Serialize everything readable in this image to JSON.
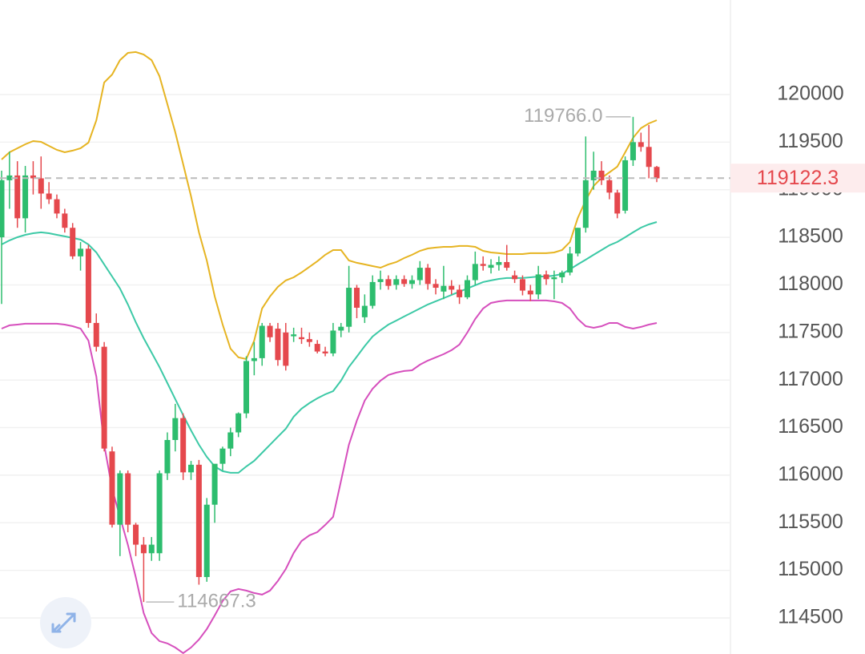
{
  "chart_data": {
    "type": "candlestick",
    "ylim": [
      114121,
      120994
    ],
    "yticks": [
      114500,
      115000,
      115500,
      116000,
      116500,
      117000,
      117500,
      118000,
      118500,
      119000,
      119500,
      120000
    ],
    "grid": true,
    "up_color": "#2dbd6e",
    "down_color": "#e5484d",
    "candles": [
      [
        118500,
        119200,
        117800,
        119100
      ],
      [
        119100,
        119400,
        118800,
        119150
      ],
      [
        119150,
        119300,
        118600,
        118700
      ],
      [
        118700,
        119250,
        118550,
        119150
      ],
      [
        119150,
        119300,
        118950,
        119120
      ],
      [
        119120,
        119350,
        118800,
        118960
      ],
      [
        118960,
        119080,
        118850,
        118900
      ],
      [
        118900,
        118950,
        118700,
        118750
      ],
      [
        118750,
        118800,
        118550,
        118600
      ],
      [
        118600,
        118650,
        118270,
        118300
      ],
      [
        118300,
        118450,
        118150,
        118380
      ],
      [
        118380,
        118420,
        117550,
        117600
      ],
      [
        117600,
        117700,
        117300,
        117350
      ],
      [
        117350,
        117400,
        116250,
        116280
      ],
      [
        116250,
        116300,
        115450,
        115480
      ],
      [
        115480,
        116050,
        115150,
        116020
      ],
      [
        116020,
        116050,
        115400,
        115480
      ],
      [
        115480,
        115500,
        115150,
        115270
      ],
      [
        115270,
        115350,
        114667.3,
        115180
      ],
      [
        115180,
        115350,
        115100,
        115270
      ],
      [
        115180,
        116050,
        115100,
        116020
      ],
      [
        116020,
        116450,
        115950,
        116370
      ],
      [
        116370,
        116750,
        116250,
        116600
      ],
      [
        116600,
        116650,
        115950,
        116030
      ],
      [
        116030,
        116150,
        115950,
        116110
      ],
      [
        116110,
        116160,
        114850,
        114930
      ],
      [
        114930,
        115760,
        114880,
        115690
      ],
      [
        115690,
        116100,
        115500,
        116120
      ],
      [
        116120,
        116300,
        116050,
        116280
      ],
      [
        116280,
        116500,
        116200,
        116450
      ],
      [
        116450,
        116660,
        116400,
        116650
      ],
      [
        116650,
        117250,
        116600,
        117200
      ],
      [
        117200,
        117400,
        117050,
        117230
      ],
      [
        117230,
        117600,
        117150,
        117570
      ],
      [
        117570,
        117600,
        117400,
        117450
      ],
      [
        117540,
        117600,
        117150,
        117210
      ],
      [
        117500,
        117600,
        117100,
        117150
      ],
      [
        117460,
        117550,
        117400,
        117480
      ],
      [
        117450,
        117550,
        117380,
        117430
      ],
      [
        117430,
        117500,
        117350,
        117400
      ],
      [
        117380,
        117420,
        117280,
        117300
      ],
      [
        117300,
        117350,
        117250,
        117280
      ],
      [
        117280,
        117600,
        117250,
        117520
      ],
      [
        117520,
        117600,
        117450,
        117560
      ],
      [
        117560,
        118200,
        117500,
        117970
      ],
      [
        117970,
        118000,
        117650,
        117760
      ],
      [
        117660,
        117900,
        117600,
        117780
      ],
      [
        117780,
        118100,
        117750,
        118030
      ],
      [
        118030,
        118150,
        117950,
        118060
      ],
      [
        118060,
        118100,
        117950,
        117990
      ],
      [
        118000,
        118100,
        117950,
        118060
      ],
      [
        118060,
        118100,
        117980,
        118010
      ],
      [
        118010,
        118100,
        117960,
        118050
      ],
      [
        118050,
        118250,
        118000,
        118180
      ],
      [
        118180,
        118220,
        117950,
        118010
      ],
      [
        118010,
        118060,
        117900,
        117970
      ],
      [
        117930,
        118200,
        117850,
        117990
      ],
      [
        117990,
        118050,
        117900,
        117950
      ],
      [
        117950,
        118000,
        117800,
        117870
      ],
      [
        117870,
        118100,
        117850,
        118050
      ],
      [
        118050,
        118350,
        118000,
        118220
      ],
      [
        118220,
        118300,
        118150,
        118200
      ],
      [
        118180,
        118270,
        118120,
        118210
      ],
      [
        118210,
        118300,
        118150,
        118240
      ],
      [
        118240,
        118420,
        118150,
        118180
      ],
      [
        118100,
        118150,
        118020,
        118060
      ],
      [
        118060,
        118100,
        117890,
        117940
      ],
      [
        117940,
        118000,
        117830,
        117900
      ],
      [
        117900,
        118200,
        117850,
        118110
      ],
      [
        118110,
        118150,
        118000,
        118060
      ],
      [
        118060,
        118150,
        117850,
        118080
      ],
      [
        118080,
        118150,
        118020,
        118130
      ],
      [
        118130,
        118400,
        118100,
        118330
      ],
      [
        118330,
        118600,
        118300,
        118600
      ],
      [
        118600,
        119560,
        118550,
        119100
      ],
      [
        119100,
        119400,
        119000,
        119200
      ],
      [
        119200,
        119300,
        119050,
        119100
      ],
      [
        119100,
        119150,
        118900,
        118970
      ],
      [
        118970,
        119000,
        118700,
        118750
      ],
      [
        118780,
        119350,
        118750,
        119310
      ],
      [
        119310,
        119766,
        119250,
        119500
      ],
      [
        119500,
        119600,
        119400,
        119450
      ],
      [
        119450,
        119680,
        119120,
        119240
      ],
      [
        119240,
        119250,
        119080,
        119120
      ]
    ],
    "bands": [
      {
        "color": "#e6b422",
        "values": [
          119318,
          119394,
          119436,
          119478,
          119512,
          119503,
          119461,
          119419,
          119394,
          119411,
          119436,
          119495,
          119730,
          120127,
          120211,
          120362,
          120438,
          120447,
          120421,
          120362,
          120194,
          119899,
          119605,
          119268,
          118931,
          118552,
          118257,
          117878,
          117583,
          117330,
          117238,
          117221,
          117415,
          117752,
          117878,
          117979,
          118047,
          118080,
          118131,
          118190,
          118249,
          118316,
          118366,
          118366,
          118257,
          118232,
          118215,
          118198,
          118181,
          118215,
          118240,
          118282,
          118316,
          118358,
          118383,
          118392,
          118400,
          118400,
          118409,
          118409,
          118400,
          118358,
          118341,
          118333,
          118324,
          118324,
          118324,
          118333,
          118333,
          118333,
          118341,
          118366,
          118451,
          118703,
          118889,
          119040,
          119124,
          119183,
          119242,
          119394,
          119545,
          119647,
          119697,
          119731
        ]
      },
      {
        "color": "#3cc9a6",
        "values": [
          118425,
          118468,
          118501,
          118526,
          118543,
          118552,
          118543,
          118526,
          118510,
          118493,
          118476,
          118425,
          118341,
          118215,
          118088,
          117962,
          117794,
          117608,
          117440,
          117288,
          117137,
          116968,
          116800,
          116631,
          116471,
          116320,
          116193,
          116092,
          116042,
          116025,
          116025,
          116092,
          116151,
          116235,
          116320,
          116404,
          116488,
          116615,
          116699,
          116758,
          116808,
          116850,
          116884,
          116994,
          117137,
          117246,
          117356,
          117457,
          117524,
          117583,
          117625,
          117668,
          117710,
          117752,
          117794,
          117828,
          117861,
          117895,
          117929,
          117962,
          117996,
          118030,
          118047,
          118063,
          118072,
          118072,
          118072,
          118080,
          118088,
          118088,
          118097,
          118114,
          118164,
          118215,
          118265,
          118316,
          118366,
          118417,
          118451,
          118501,
          118552,
          118602,
          118636,
          118661
        ]
      },
      {
        "color": "#d64fbd",
        "values": [
          117541,
          117575,
          117583,
          117592,
          117592,
          117592,
          117592,
          117592,
          117583,
          117566,
          117541,
          117415,
          117036,
          116320,
          115857,
          115562,
          115267,
          114930,
          114551,
          114341,
          114257,
          114232,
          114189,
          114130,
          114189,
          114273,
          114383,
          114526,
          114678,
          114779,
          114804,
          114787,
          114762,
          114745,
          114787,
          114888,
          115014,
          115183,
          115309,
          115368,
          115402,
          115478,
          115562,
          115941,
          116320,
          116573,
          116783,
          116909,
          116994,
          117053,
          117078,
          117095,
          117103,
          117162,
          117205,
          117238,
          117272,
          117314,
          117373,
          117499,
          117642,
          117752,
          117810,
          117827,
          117836,
          117836,
          117836,
          117836,
          117836,
          117836,
          117827,
          117810,
          117752,
          117642,
          117566,
          117549,
          117566,
          117600,
          117600,
          117558,
          117541,
          117558,
          117583,
          117600
        ]
      }
    ],
    "high_label": {
      "value": 119766,
      "label": "119766.0"
    },
    "low_label": 114667.3,
    "last_price": 119122.3
  }
}
